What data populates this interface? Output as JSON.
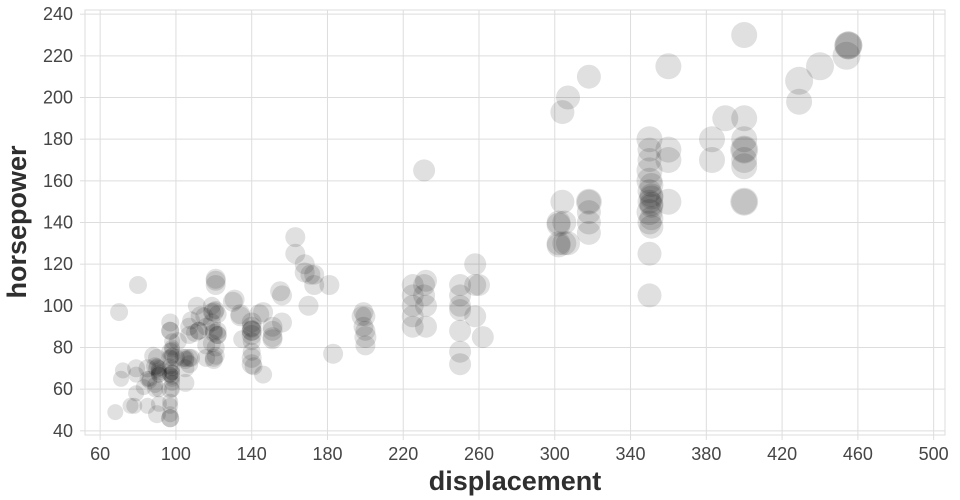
{
  "chart_data": {
    "type": "scatter",
    "title": "",
    "xlabel": "displacement",
    "ylabel": "horsepower",
    "xlim": [
      52,
      506
    ],
    "ylim": [
      38,
      242
    ],
    "x_ticks": [
      60,
      100,
      140,
      180,
      220,
      260,
      300,
      340,
      380,
      420,
      460,
      500
    ],
    "y_ticks": [
      40,
      60,
      80,
      100,
      120,
      140,
      160,
      180,
      200,
      220,
      240
    ],
    "grid": true,
    "legend": "none",
    "grid_color": "#dddddd",
    "tick_label_color": "#454545",
    "axis_title_color": "#2f2f2f",
    "point_color": "#000000",
    "point_opacity": 0.12,
    "points": [
      [
        68,
        49,
        8
      ],
      [
        70,
        97,
        9
      ],
      [
        71,
        65,
        8
      ],
      [
        72,
        69,
        8
      ],
      [
        76,
        52,
        8
      ],
      [
        78,
        52,
        8
      ],
      [
        79,
        58,
        8
      ],
      [
        79,
        67,
        8
      ],
      [
        79,
        70,
        9
      ],
      [
        80,
        110,
        9
      ],
      [
        83,
        61,
        8
      ],
      [
        85,
        52,
        8
      ],
      [
        85,
        65,
        8
      ],
      [
        85,
        70,
        9
      ],
      [
        86,
        64,
        8
      ],
      [
        86,
        65,
        8
      ],
      [
        88,
        76,
        9
      ],
      [
        89,
        60,
        8
      ],
      [
        89,
        62,
        8
      ],
      [
        89,
        71,
        9
      ],
      [
        90,
        48,
        9
      ],
      [
        90,
        70,
        9
      ],
      [
        90,
        71,
        8
      ],
      [
        90,
        75,
        9
      ],
      [
        91,
        53,
        8
      ],
      [
        91,
        60,
        8
      ],
      [
        91,
        67,
        8
      ],
      [
        91,
        67,
        8
      ],
      [
        91,
        68,
        8
      ],
      [
        91,
        69,
        8
      ],
      [
        91,
        70,
        8
      ],
      [
        97,
        46,
        9
      ],
      [
        97,
        46,
        9
      ],
      [
        97,
        48,
        8
      ],
      [
        97,
        52,
        8
      ],
      [
        97,
        54,
        8
      ],
      [
        97,
        60,
        9
      ],
      [
        97,
        67,
        8
      ],
      [
        97,
        67,
        8
      ],
      [
        97,
        71,
        8
      ],
      [
        97,
        75,
        9
      ],
      [
        97,
        75,
        8
      ],
      [
        97,
        78,
        9
      ],
      [
        97,
        88,
        9
      ],
      [
        97,
        88,
        9
      ],
      [
        97,
        92,
        9
      ],
      [
        98,
        60,
        8
      ],
      [
        98,
        63,
        8
      ],
      [
        98,
        65,
        8
      ],
      [
        98,
        66,
        8
      ],
      [
        98,
        68,
        8
      ],
      [
        98,
        68,
        8
      ],
      [
        98,
        70,
        8
      ],
      [
        98,
        76,
        8
      ],
      [
        98,
        79,
        8
      ],
      [
        98,
        80,
        8
      ],
      [
        98,
        83,
        8
      ],
      [
        100,
        75,
        9
      ],
      [
        101,
        83,
        9
      ],
      [
        104,
        75,
        9
      ],
      [
        105,
        63,
        9
      ],
      [
        105,
        70,
        9
      ],
      [
        105,
        74,
        9
      ],
      [
        105,
        75,
        9
      ],
      [
        107,
        72,
        9
      ],
      [
        107,
        75,
        9
      ],
      [
        107,
        86,
        9
      ],
      [
        107,
        90,
        9
      ],
      [
        108,
        75,
        9
      ],
      [
        108,
        93,
        9
      ],
      [
        110,
        87,
        9
      ],
      [
        111,
        100,
        9
      ],
      [
        112,
        88,
        9
      ],
      [
        112,
        88,
        9
      ],
      [
        113,
        95,
        10
      ],
      [
        115,
        95,
        9
      ],
      [
        116,
        75,
        9
      ],
      [
        116,
        81,
        9
      ],
      [
        116,
        90,
        9
      ],
      [
        119,
        82,
        9
      ],
      [
        119,
        92,
        9
      ],
      [
        119,
        97,
        9
      ],
      [
        119,
        100,
        9
      ],
      [
        120,
        74,
        9
      ],
      [
        120,
        75,
        9
      ],
      [
        120,
        87,
        9
      ],
      [
        120,
        88,
        9
      ],
      [
        120,
        97,
        10
      ],
      [
        121,
        76,
        9
      ],
      [
        121,
        80,
        9
      ],
      [
        121,
        98,
        9
      ],
      [
        121,
        110,
        10
      ],
      [
        121,
        112,
        10
      ],
      [
        121,
        113,
        10
      ],
      [
        122,
        86,
        9
      ],
      [
        122,
        86,
        9
      ],
      [
        122,
        88,
        9
      ],
      [
        122,
        96,
        9
      ],
      [
        130,
        102,
        10
      ],
      [
        131,
        103,
        10
      ],
      [
        134,
        95,
        10
      ],
      [
        134,
        96,
        10
      ],
      [
        135,
        84,
        9
      ],
      [
        140,
        72,
        10
      ],
      [
        140,
        75,
        10
      ],
      [
        140,
        78,
        9
      ],
      [
        140,
        83,
        9
      ],
      [
        140,
        86,
        10
      ],
      [
        140,
        88,
        10
      ],
      [
        140,
        88,
        10
      ],
      [
        140,
        89,
        9
      ],
      [
        140,
        90,
        10
      ],
      [
        140,
        92,
        10
      ],
      [
        141,
        71,
        9
      ],
      [
        144,
        96,
        10
      ],
      [
        146,
        67,
        9
      ],
      [
        146,
        97,
        10
      ],
      [
        151,
        84,
        10
      ],
      [
        151,
        85,
        10
      ],
      [
        151,
        88,
        10
      ],
      [
        151,
        90,
        10
      ],
      [
        155,
        107,
        10
      ],
      [
        156,
        92,
        10
      ],
      [
        156,
        105,
        10
      ],
      [
        163,
        125,
        10
      ],
      [
        163,
        133,
        10
      ],
      [
        168,
        116,
        10
      ],
      [
        168,
        120,
        10
      ],
      [
        170,
        100,
        10
      ],
      [
        171,
        115,
        10
      ],
      [
        173,
        110,
        10
      ],
      [
        173,
        115,
        10
      ],
      [
        181,
        110,
        10
      ],
      [
        183,
        77,
        10
      ],
      [
        198,
        95,
        10
      ],
      [
        199,
        90,
        10
      ],
      [
        199,
        97,
        10
      ],
      [
        200,
        81,
        10
      ],
      [
        200,
        85,
        11
      ],
      [
        200,
        88,
        10
      ],
      [
        200,
        95,
        10
      ],
      [
        225,
        90,
        11
      ],
      [
        225,
        95,
        11
      ],
      [
        225,
        100,
        11
      ],
      [
        225,
        105,
        11
      ],
      [
        225,
        110,
        11
      ],
      [
        231,
        105,
        11
      ],
      [
        231,
        110,
        11
      ],
      [
        231,
        165,
        11
      ],
      [
        232,
        90,
        11
      ],
      [
        232,
        100,
        11
      ],
      [
        232,
        112,
        11
      ],
      [
        250,
        72,
        11
      ],
      [
        250,
        78,
        11
      ],
      [
        250,
        88,
        11
      ],
      [
        250,
        98,
        11
      ],
      [
        250,
        100,
        11
      ],
      [
        250,
        105,
        11
      ],
      [
        250,
        110,
        11
      ],
      [
        258,
        95,
        11
      ],
      [
        258,
        110,
        11
      ],
      [
        258,
        120,
        11
      ],
      [
        260,
        110,
        11
      ],
      [
        262,
        85,
        11
      ],
      [
        302,
        129,
        12
      ],
      [
        302,
        130,
        12
      ],
      [
        302,
        139,
        12
      ],
      [
        302,
        140,
        12
      ],
      [
        304,
        150,
        12
      ],
      [
        305,
        130,
        12
      ],
      [
        305,
        140,
        12
      ],
      [
        307,
        130,
        12
      ],
      [
        307,
        200,
        12
      ],
      [
        304,
        193,
        12
      ],
      [
        318,
        135,
        12
      ],
      [
        318,
        140,
        12
      ],
      [
        318,
        145,
        12
      ],
      [
        318,
        150,
        12
      ],
      [
        318,
        150,
        13
      ],
      [
        318,
        210,
        12
      ],
      [
        350,
        105,
        12
      ],
      [
        350,
        125,
        12
      ],
      [
        350,
        140,
        12
      ],
      [
        350,
        145,
        13
      ],
      [
        350,
        150,
        12
      ],
      [
        350,
        155,
        12
      ],
      [
        350,
        160,
        13
      ],
      [
        350,
        165,
        13
      ],
      [
        350,
        170,
        12
      ],
      [
        350,
        175,
        12
      ],
      [
        350,
        180,
        13
      ],
      [
        351,
        138,
        12
      ],
      [
        351,
        142,
        12
      ],
      [
        351,
        148,
        12
      ],
      [
        351,
        149,
        12
      ],
      [
        351,
        152,
        12
      ],
      [
        351,
        153,
        12
      ],
      [
        351,
        158,
        12
      ],
      [
        360,
        150,
        13
      ],
      [
        360,
        170,
        13
      ],
      [
        360,
        175,
        13
      ],
      [
        360,
        215,
        13
      ],
      [
        383,
        170,
        13
      ],
      [
        383,
        180,
        13
      ],
      [
        390,
        190,
        13
      ],
      [
        400,
        150,
        13
      ],
      [
        400,
        150,
        14
      ],
      [
        400,
        167,
        13
      ],
      [
        400,
        170,
        13
      ],
      [
        400,
        175,
        13
      ],
      [
        400,
        175,
        14
      ],
      [
        400,
        180,
        13
      ],
      [
        400,
        190,
        13
      ],
      [
        400,
        230,
        13
      ],
      [
        429,
        198,
        13
      ],
      [
        429,
        208,
        14
      ],
      [
        440,
        215,
        14
      ],
      [
        454,
        220,
        14
      ],
      [
        455,
        225,
        14
      ],
      [
        455,
        225,
        14
      ],
      [
        455,
        225,
        13
      ]
    ]
  }
}
